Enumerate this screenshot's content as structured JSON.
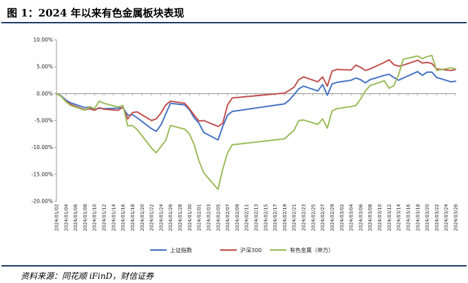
{
  "figure_title": "图 1：2024 年以来有色金属板块表现",
  "source_note": "资料来源：同花顺 iFinD，财信证券",
  "chart_data": {
    "type": "line",
    "title": "",
    "xlabel": "",
    "ylabel": "",
    "ylim": [
      -20,
      10
    ],
    "y_ticks": [
      "10.00%",
      "5.00%",
      "0.00%",
      "-5.00%",
      "-10.00%",
      "-15.00%",
      "-20.00%"
    ],
    "y_tick_values": [
      10,
      5,
      0,
      -5,
      -10,
      -15,
      -20
    ],
    "x_tick_labels": [
      "2024/01/02",
      "2024/01/04",
      "2024/01/06",
      "2024/01/08",
      "2024/01/10",
      "2024/01/12",
      "2024/01/14",
      "2024/01/16",
      "2024/01/18",
      "2024/01/20",
      "2024/01/22",
      "2024/01/24",
      "2024/01/26",
      "2024/01/28",
      "2024/01/30",
      "2024/02/01",
      "2024/02/03",
      "2024/02/05",
      "2024/02/07",
      "2024/02/09",
      "2024/02/11",
      "2024/02/13",
      "2024/02/15",
      "2024/02/17",
      "2024/02/19",
      "2024/02/21",
      "2024/02/23",
      "2024/02/25",
      "2024/02/27",
      "2024/02/29",
      "2024/03/02",
      "2024/03/04",
      "2024/03/06",
      "2024/03/08",
      "2024/03/10",
      "2024/03/12",
      "2024/03/14",
      "2024/03/16",
      "2024/03/18",
      "2024/03/20",
      "2024/03/22",
      "2024/03/24",
      "2024/03/26"
    ],
    "x_start": "2024/01/02",
    "x_end": "2024/03/26",
    "legend_position": "bottom",
    "grid": false,
    "series": [
      {
        "name": "上证指数",
        "color": "#4472c4",
        "points": [
          [
            "2024/01/02",
            0.0
          ],
          [
            "2024/01/03",
            -0.4
          ],
          [
            "2024/01/04",
            -1.2
          ],
          [
            "2024/01/05",
            -1.7
          ],
          [
            "2024/01/08",
            -2.6
          ],
          [
            "2024/01/09",
            -2.5
          ],
          [
            "2024/01/10",
            -3.0
          ],
          [
            "2024/01/11",
            -2.7
          ],
          [
            "2024/01/12",
            -2.8
          ],
          [
            "2024/01/15",
            -2.7
          ],
          [
            "2024/01/16",
            -2.6
          ],
          [
            "2024/01/17",
            -4.0
          ],
          [
            "2024/01/18",
            -3.9
          ],
          [
            "2024/01/19",
            -4.5
          ],
          [
            "2024/01/22",
            -6.5
          ],
          [
            "2024/01/23",
            -7.0
          ],
          [
            "2024/01/24",
            -5.8
          ],
          [
            "2024/01/25",
            -3.8
          ],
          [
            "2024/01/26",
            -1.8
          ],
          [
            "2024/01/29",
            -2.1
          ],
          [
            "2024/01/30",
            -3.0
          ],
          [
            "2024/01/31",
            -4.5
          ],
          [
            "2024/02/01",
            -5.5
          ],
          [
            "2024/02/02",
            -7.2
          ],
          [
            "2024/02/05",
            -8.6
          ],
          [
            "2024/02/06",
            -6.1
          ],
          [
            "2024/02/07",
            -4.0
          ],
          [
            "2024/02/08",
            -3.3
          ],
          [
            "2024/02/19",
            -1.9
          ],
          [
            "2024/02/20",
            -1.2
          ],
          [
            "2024/02/21",
            -0.2
          ],
          [
            "2024/02/22",
            0.9
          ],
          [
            "2024/02/23",
            1.4
          ],
          [
            "2024/02/26",
            0.5
          ],
          [
            "2024/02/27",
            1.7
          ],
          [
            "2024/02/28",
            -0.3
          ],
          [
            "2024/02/29",
            1.8
          ],
          [
            "2024/03/01",
            2.1
          ],
          [
            "2024/03/04",
            2.5
          ],
          [
            "2024/03/05",
            2.9
          ],
          [
            "2024/03/06",
            2.6
          ],
          [
            "2024/03/07",
            2.0
          ],
          [
            "2024/03/08",
            2.6
          ],
          [
            "2024/03/11",
            3.4
          ],
          [
            "2024/03/12",
            3.6
          ],
          [
            "2024/03/13",
            3.0
          ],
          [
            "2024/03/14",
            2.5
          ],
          [
            "2024/03/15",
            2.9
          ],
          [
            "2024/03/18",
            4.1
          ],
          [
            "2024/03/19",
            3.4
          ],
          [
            "2024/03/20",
            4.0
          ],
          [
            "2024/03/21",
            4.0
          ],
          [
            "2024/03/22",
            3.0
          ],
          [
            "2024/03/25",
            2.2
          ],
          [
            "2024/03/26",
            2.3
          ]
        ]
      },
      {
        "name": "沪深300",
        "color": "#c0504d",
        "points": [
          [
            "2024/01/02",
            0.0
          ],
          [
            "2024/01/03",
            -0.5
          ],
          [
            "2024/01/04",
            -1.4
          ],
          [
            "2024/01/05",
            -2.0
          ],
          [
            "2024/01/08",
            -3.0
          ],
          [
            "2024/01/09",
            -2.8
          ],
          [
            "2024/01/10",
            -3.1
          ],
          [
            "2024/01/11",
            -2.6
          ],
          [
            "2024/01/12",
            -2.9
          ],
          [
            "2024/01/15",
            -3.1
          ],
          [
            "2024/01/16",
            -2.5
          ],
          [
            "2024/01/17",
            -4.7
          ],
          [
            "2024/01/18",
            -3.5
          ],
          [
            "2024/01/19",
            -3.4
          ],
          [
            "2024/01/22",
            -5.0
          ],
          [
            "2024/01/23",
            -4.7
          ],
          [
            "2024/01/24",
            -3.6
          ],
          [
            "2024/01/25",
            -2.1
          ],
          [
            "2024/01/26",
            -1.4
          ],
          [
            "2024/01/29",
            -1.8
          ],
          [
            "2024/01/30",
            -2.8
          ],
          [
            "2024/01/31",
            -4.0
          ],
          [
            "2024/02/01",
            -5.1
          ],
          [
            "2024/02/02",
            -5.0
          ],
          [
            "2024/02/05",
            -6.1
          ],
          [
            "2024/02/06",
            -5.5
          ],
          [
            "2024/02/07",
            -2.1
          ],
          [
            "2024/02/08",
            -0.8
          ],
          [
            "2024/02/19",
            0.1
          ],
          [
            "2024/02/20",
            0.6
          ],
          [
            "2024/02/21",
            1.2
          ],
          [
            "2024/02/22",
            2.6
          ],
          [
            "2024/02/23",
            3.1
          ],
          [
            "2024/02/26",
            2.2
          ],
          [
            "2024/02/27",
            3.1
          ],
          [
            "2024/02/28",
            1.4
          ],
          [
            "2024/02/29",
            4.2
          ],
          [
            "2024/03/01",
            4.5
          ],
          [
            "2024/03/04",
            4.4
          ],
          [
            "2024/03/05",
            5.3
          ],
          [
            "2024/03/06",
            4.9
          ],
          [
            "2024/03/07",
            4.3
          ],
          [
            "2024/03/08",
            4.6
          ],
          [
            "2024/03/11",
            5.8
          ],
          [
            "2024/03/12",
            6.3
          ],
          [
            "2024/03/13",
            5.4
          ],
          [
            "2024/03/14",
            5.1
          ],
          [
            "2024/03/15",
            5.3
          ],
          [
            "2024/03/18",
            6.2
          ],
          [
            "2024/03/19",
            5.7
          ],
          [
            "2024/03/20",
            5.8
          ],
          [
            "2024/03/21",
            5.6
          ],
          [
            "2024/03/22",
            4.6
          ],
          [
            "2024/03/25",
            4.3
          ],
          [
            "2024/03/26",
            4.5
          ]
        ]
      },
      {
        "name": "有色金属（申万）",
        "color": "#9bbb59",
        "points": [
          [
            "2024/01/02",
            0.0
          ],
          [
            "2024/01/03",
            -0.5
          ],
          [
            "2024/01/04",
            -1.5
          ],
          [
            "2024/01/05",
            -2.2
          ],
          [
            "2024/01/08",
            -3.1
          ],
          [
            "2024/01/09",
            -2.4
          ],
          [
            "2024/01/10",
            -2.8
          ],
          [
            "2024/01/11",
            -1.4
          ],
          [
            "2024/01/12",
            -1.8
          ],
          [
            "2024/01/15",
            -2.5
          ],
          [
            "2024/01/16",
            -2.2
          ],
          [
            "2024/01/17",
            -6.0
          ],
          [
            "2024/01/18",
            -5.9
          ],
          [
            "2024/01/19",
            -6.7
          ],
          [
            "2024/01/22",
            -10.1
          ],
          [
            "2024/01/23",
            -11.0
          ],
          [
            "2024/01/24",
            -9.8
          ],
          [
            "2024/01/25",
            -8.7
          ],
          [
            "2024/01/26",
            -5.9
          ],
          [
            "2024/01/29",
            -6.6
          ],
          [
            "2024/01/30",
            -7.5
          ],
          [
            "2024/01/31",
            -9.5
          ],
          [
            "2024/02/01",
            -12.5
          ],
          [
            "2024/02/02",
            -14.7
          ],
          [
            "2024/02/05",
            -17.8
          ],
          [
            "2024/02/06",
            -14.0
          ],
          [
            "2024/02/07",
            -11.0
          ],
          [
            "2024/02/08",
            -9.5
          ],
          [
            "2024/02/19",
            -8.4
          ],
          [
            "2024/02/20",
            -7.6
          ],
          [
            "2024/02/21",
            -6.8
          ],
          [
            "2024/02/22",
            -5.0
          ],
          [
            "2024/02/23",
            -4.9
          ],
          [
            "2024/02/26",
            -5.7
          ],
          [
            "2024/02/27",
            -4.7
          ],
          [
            "2024/02/28",
            -6.4
          ],
          [
            "2024/02/29",
            -3.2
          ],
          [
            "2024/03/01",
            -2.8
          ],
          [
            "2024/03/04",
            -2.4
          ],
          [
            "2024/03/05",
            -2.2
          ],
          [
            "2024/03/06",
            -1.0
          ],
          [
            "2024/03/07",
            0.5
          ],
          [
            "2024/03/08",
            1.5
          ],
          [
            "2024/03/11",
            2.4
          ],
          [
            "2024/03/12",
            1.0
          ],
          [
            "2024/03/13",
            1.5
          ],
          [
            "2024/03/14",
            3.5
          ],
          [
            "2024/03/15",
            6.4
          ],
          [
            "2024/03/18",
            7.0
          ],
          [
            "2024/03/19",
            6.5
          ],
          [
            "2024/03/20",
            6.9
          ],
          [
            "2024/03/21",
            7.1
          ],
          [
            "2024/03/22",
            4.3
          ],
          [
            "2024/03/25",
            4.8
          ],
          [
            "2024/03/26",
            4.6
          ]
        ]
      }
    ]
  }
}
